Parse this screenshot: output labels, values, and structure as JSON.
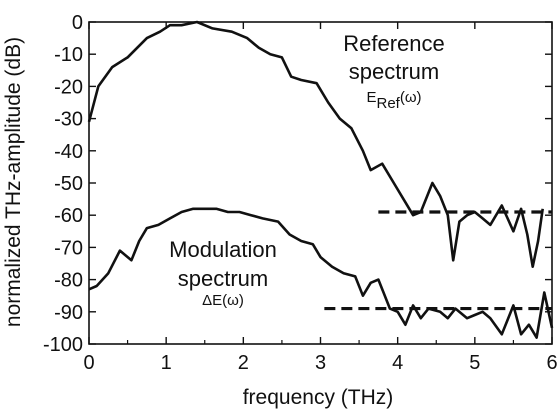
{
  "chart_data": {
    "type": "line",
    "title": "",
    "xlabel": "frequency (THz)",
    "ylabel": "normalized THz-amplitude (dB)",
    "xlim": [
      0,
      6
    ],
    "ylim": [
      -100,
      0
    ],
    "xticks": [
      0,
      1,
      2,
      3,
      4,
      5,
      6
    ],
    "yticks": [
      0,
      -10,
      -20,
      -30,
      -40,
      -50,
      -60,
      -70,
      -80,
      -90,
      -100
    ],
    "grid": false,
    "legend": "none",
    "series": [
      {
        "color": "#111111",
        "x": [
          0,
          0.12,
          0.3,
          0.5,
          0.75,
          0.92,
          1.05,
          1.2,
          1.4,
          1.6,
          1.85,
          2.05,
          2.2,
          2.35,
          2.5,
          2.62,
          2.75,
          2.95,
          3.1,
          3.25,
          3.4,
          3.55,
          3.65,
          3.8,
          3.95,
          4.1,
          4.2,
          4.3,
          4.45,
          4.55,
          4.65,
          4.72,
          4.8,
          4.9,
          5.0,
          5.1,
          5.2,
          5.35,
          5.5,
          5.6,
          5.68,
          5.75,
          5.82,
          5.88
        ],
        "y": [
          -31,
          -20,
          -14,
          -11,
          -5,
          -3,
          -1,
          -1,
          0,
          -2,
          -3,
          -5,
          -8,
          -10,
          -11,
          -17,
          -18,
          -19,
          -25,
          -30,
          -33,
          -40,
          -46,
          -44,
          -50,
          -56,
          -60,
          -59,
          -50,
          -54,
          -60,
          -74,
          -62,
          -60,
          -59,
          -61,
          -63,
          -57,
          -65,
          -58,
          -66,
          -76,
          -68,
          -58
        ]
      },
      {
        "color": "#111111",
        "x": [
          0,
          0.1,
          0.25,
          0.4,
          0.55,
          0.65,
          0.75,
          0.9,
          1.05,
          1.2,
          1.35,
          1.5,
          1.65,
          1.8,
          1.95,
          2.1,
          2.25,
          2.45,
          2.6,
          2.75,
          2.9,
          3.0,
          3.15,
          3.3,
          3.45,
          3.55,
          3.65,
          3.75,
          3.9,
          4.0,
          4.1,
          4.2,
          4.3,
          4.4,
          4.55,
          4.65,
          4.75,
          4.9,
          5.0,
          5.1,
          5.2,
          5.35,
          5.5,
          5.6,
          5.7,
          5.8,
          5.9,
          6.0
        ],
        "y": [
          -83,
          -82,
          -78,
          -71,
          -74,
          -68,
          -64,
          -63,
          -61,
          -59,
          -58,
          -58,
          -58,
          -59,
          -59,
          -60,
          -61,
          -62,
          -66,
          -68,
          -69,
          -73,
          -76,
          -78,
          -79,
          -85,
          -81,
          -80,
          -89,
          -90,
          -94,
          -88,
          -92,
          -89,
          -90,
          -92,
          -89,
          -92,
          -91,
          -90,
          -92,
          -97,
          -88,
          -97,
          -94,
          -98,
          -84,
          -95
        ]
      }
    ],
    "reference_lines": [
      {
        "y": -59,
        "x_start": 3.75,
        "x_end": 6.0,
        "style": "dashed"
      },
      {
        "y": -89,
        "x_start": 3.05,
        "x_end": 6.0,
        "style": "dashed"
      }
    ],
    "annotations": [
      {
        "id": "ref",
        "line1": "Reference",
        "line2": "spectrum",
        "sub_main": "E",
        "sub_small": "Ref",
        "sub_tail": "(ω)"
      },
      {
        "id": "mod",
        "line1": "Modulation",
        "line2": "spectrum",
        "sub_main": "ΔE(ω)"
      }
    ]
  }
}
